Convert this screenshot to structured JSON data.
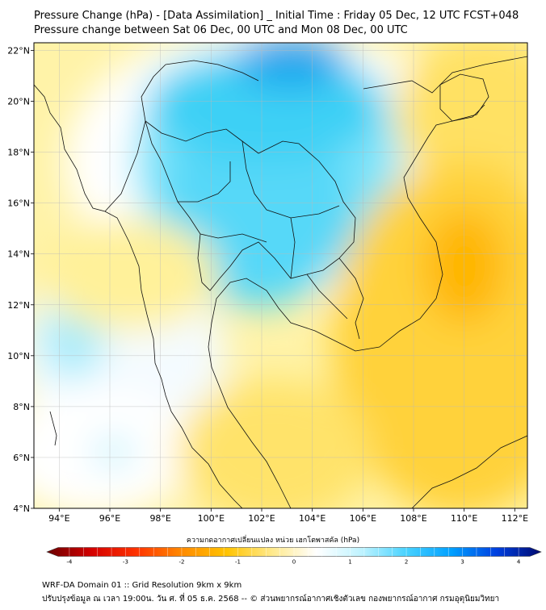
{
  "title_line1": "Pressure Change (hPa) - [Data Assimilation] _ Initial Time : Friday 05 Dec, 12 UTC FCST+048",
  "title_line2": "Pressure change between Sat 06 Dec, 00 UTC and Mon 08 Dec, 00 UTC",
  "map": {
    "lon_range": [
      93,
      112.5
    ],
    "lat_range": [
      4,
      22.3
    ],
    "lon_ticks": [
      {
        "value": 94,
        "label": "94°E"
      },
      {
        "value": 96,
        "label": "96°E"
      },
      {
        "value": 98,
        "label": "98°E"
      },
      {
        "value": 100,
        "label": "100°E"
      },
      {
        "value": 102,
        "label": "102°E"
      },
      {
        "value": 104,
        "label": "104°E"
      },
      {
        "value": 106,
        "label": "106°E"
      },
      {
        "value": 108,
        "label": "108°E"
      },
      {
        "value": 110,
        "label": "110°E"
      },
      {
        "value": 112,
        "label": "112°E"
      }
    ],
    "lat_ticks": [
      {
        "value": 4,
        "label": "4°N"
      },
      {
        "value": 6,
        "label": "6°N"
      },
      {
        "value": 8,
        "label": "8°N"
      },
      {
        "value": 10,
        "label": "10°N"
      },
      {
        "value": 12,
        "label": "12°N"
      },
      {
        "value": 14,
        "label": "14°N"
      },
      {
        "value": 16,
        "label": "16°N"
      },
      {
        "value": 18,
        "label": "18°N"
      },
      {
        "value": 20,
        "label": "20°N"
      },
      {
        "value": 22,
        "label": "22°N"
      }
    ],
    "colors": {
      "negative": "#f2c200",
      "neutral": "#ffffff",
      "positive": "#1ec8f0",
      "coast": "#111111"
    }
  },
  "colorbar": {
    "label": "ความกดอากาศเปลี่ยนแปลง หน่วย เฮกโตพาสคัล (hPa)",
    "range": [
      -4.2,
      4.2
    ],
    "ticks": [
      {
        "value": -4,
        "label": "-4"
      },
      {
        "value": -3,
        "label": "-3"
      },
      {
        "value": -2,
        "label": "-2"
      },
      {
        "value": -1,
        "label": "-1"
      },
      {
        "value": 0,
        "label": "0"
      },
      {
        "value": 1,
        "label": "1"
      },
      {
        "value": 2,
        "label": "2"
      },
      {
        "value": 3,
        "label": "3"
      },
      {
        "value": 4,
        "label": "4"
      }
    ],
    "stops": [
      "#6b0000",
      "#d40000",
      "#ff3300",
      "#ff8a00",
      "#ffc300",
      "#ffe98a",
      "#ffffff",
      "#bff3ff",
      "#48d2ff",
      "#00a0ff",
      "#0040e0",
      "#000a70"
    ]
  },
  "footer_line1": "WRF-DA Domain 01 :: Grid Resolution 9km x 9km",
  "footer_line2": "ปรับปรุงข้อมูล ณ เวลา 19:00น. วัน ศ. ที่ 05 ธ.ค. 2568 -- © ส่วนพยากรณ์อากาศเชิงตัวเลข กองพยากรณ์อากาศ กรมอุตุนิยมวิทยา"
}
